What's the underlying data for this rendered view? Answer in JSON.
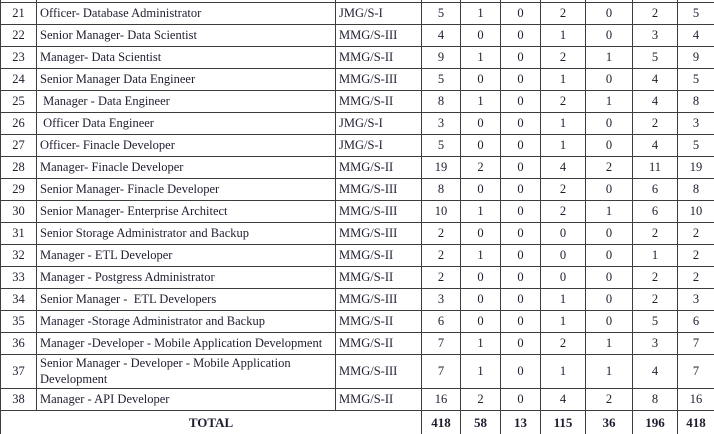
{
  "table": {
    "description": "vacancy-table-rows-21-38",
    "columns": {
      "widths": [
        36,
        299,
        86,
        39,
        40,
        40,
        45,
        47,
        45,
        37
      ]
    },
    "rows": [
      {
        "no": "21",
        "post": "Officer- Database Administrator",
        "grade": "JMG/S-I",
        "values": [
          "5",
          "1",
          "0",
          "2",
          "0",
          "2",
          "5"
        ]
      },
      {
        "no": "22",
        "post": "Senior Manager- Data Scientist",
        "grade": "MMG/S-III",
        "values": [
          "4",
          "0",
          "0",
          "1",
          "0",
          "3",
          "4"
        ]
      },
      {
        "no": "23",
        "post": "Manager- Data Scientist",
        "grade": "MMG/S-II",
        "values": [
          "9",
          "1",
          "0",
          "2",
          "1",
          "5",
          "9"
        ]
      },
      {
        "no": "24",
        "post": "Senior Manager Data Engineer",
        "grade": "MMG/S-III",
        "values": [
          "5",
          "0",
          "0",
          "1",
          "0",
          "4",
          "5"
        ]
      },
      {
        "no": "25",
        "post": " Manager - Data Engineer",
        "grade": "MMG/S-II",
        "values": [
          "8",
          "1",
          "0",
          "2",
          "1",
          "4",
          "8"
        ]
      },
      {
        "no": "26",
        "post": " Officer Data Engineer",
        "grade": "JMG/S-I",
        "values": [
          "3",
          "0",
          "0",
          "1",
          "0",
          "2",
          "3"
        ]
      },
      {
        "no": "27",
        "post": "Officer- Finacle Developer",
        "grade": "JMG/S-I",
        "values": [
          "5",
          "0",
          "0",
          "1",
          "0",
          "4",
          "5"
        ]
      },
      {
        "no": "28",
        "post": "Manager- Finacle Developer",
        "grade": "MMG/S-II",
        "values": [
          "19",
          "2",
          "0",
          "4",
          "2",
          "11",
          "19"
        ]
      },
      {
        "no": "29",
        "post": "Senior Manager- Finacle Developer",
        "grade": "MMG/S-III",
        "values": [
          "8",
          "0",
          "0",
          "2",
          "0",
          "6",
          "8"
        ]
      },
      {
        "no": "30",
        "post": "Senior Manager- Enterprise Architect",
        "grade": "MMG/S-III",
        "values": [
          "10",
          "1",
          "0",
          "2",
          "1",
          "6",
          "10"
        ]
      },
      {
        "no": "31",
        "post": "Senior Storage Administrator and Backup",
        "grade": "MMG/S-III",
        "values": [
          "2",
          "0",
          "0",
          "0",
          "0",
          "2",
          "2"
        ]
      },
      {
        "no": "32",
        "post": "Manager - ETL Developer",
        "grade": "MMG/S-II",
        "values": [
          "2",
          "1",
          "0",
          "0",
          "0",
          "1",
          "2"
        ]
      },
      {
        "no": "33",
        "post": "Manager - Postgress Administrator",
        "grade": "MMG/S-II",
        "values": [
          "2",
          "0",
          "0",
          "0",
          "0",
          "2",
          "2"
        ]
      },
      {
        "no": "34",
        "post": "Senior Manager -  ETL Developers",
        "grade": "MMG/S-III",
        "values": [
          "3",
          "0",
          "0",
          "1",
          "0",
          "2",
          "3"
        ]
      },
      {
        "no": "35",
        "post": "Manager -Storage Administrator and Backup",
        "grade": "MMG/S-II",
        "values": [
          "6",
          "0",
          "0",
          "1",
          "0",
          "5",
          "6"
        ]
      },
      {
        "no": "36",
        "post": "Manager -Developer - Mobile Application Development",
        "grade": "MMG/S-II",
        "values": [
          "7",
          "1",
          "0",
          "2",
          "1",
          "3",
          "7"
        ]
      },
      {
        "no": "37",
        "post": "Senior Manager - Developer - Mobile Application Development",
        "grade": "MMG/S-III",
        "values": [
          "7",
          "1",
          "0",
          "1",
          "1",
          "4",
          "7"
        ]
      },
      {
        "no": "38",
        "post": "Manager - API Developer",
        "grade": "MMG/S-II",
        "values": [
          "16",
          "2",
          "0",
          "4",
          "2",
          "8",
          "16"
        ]
      }
    ],
    "total": {
      "label": "TOTAL",
      "values": [
        "418",
        "58",
        "13",
        "115",
        "36",
        "196",
        "418"
      ]
    }
  },
  "colors": {
    "text": "#1e1e30",
    "border": "#3d3d3d",
    "background": "#ffffff"
  }
}
